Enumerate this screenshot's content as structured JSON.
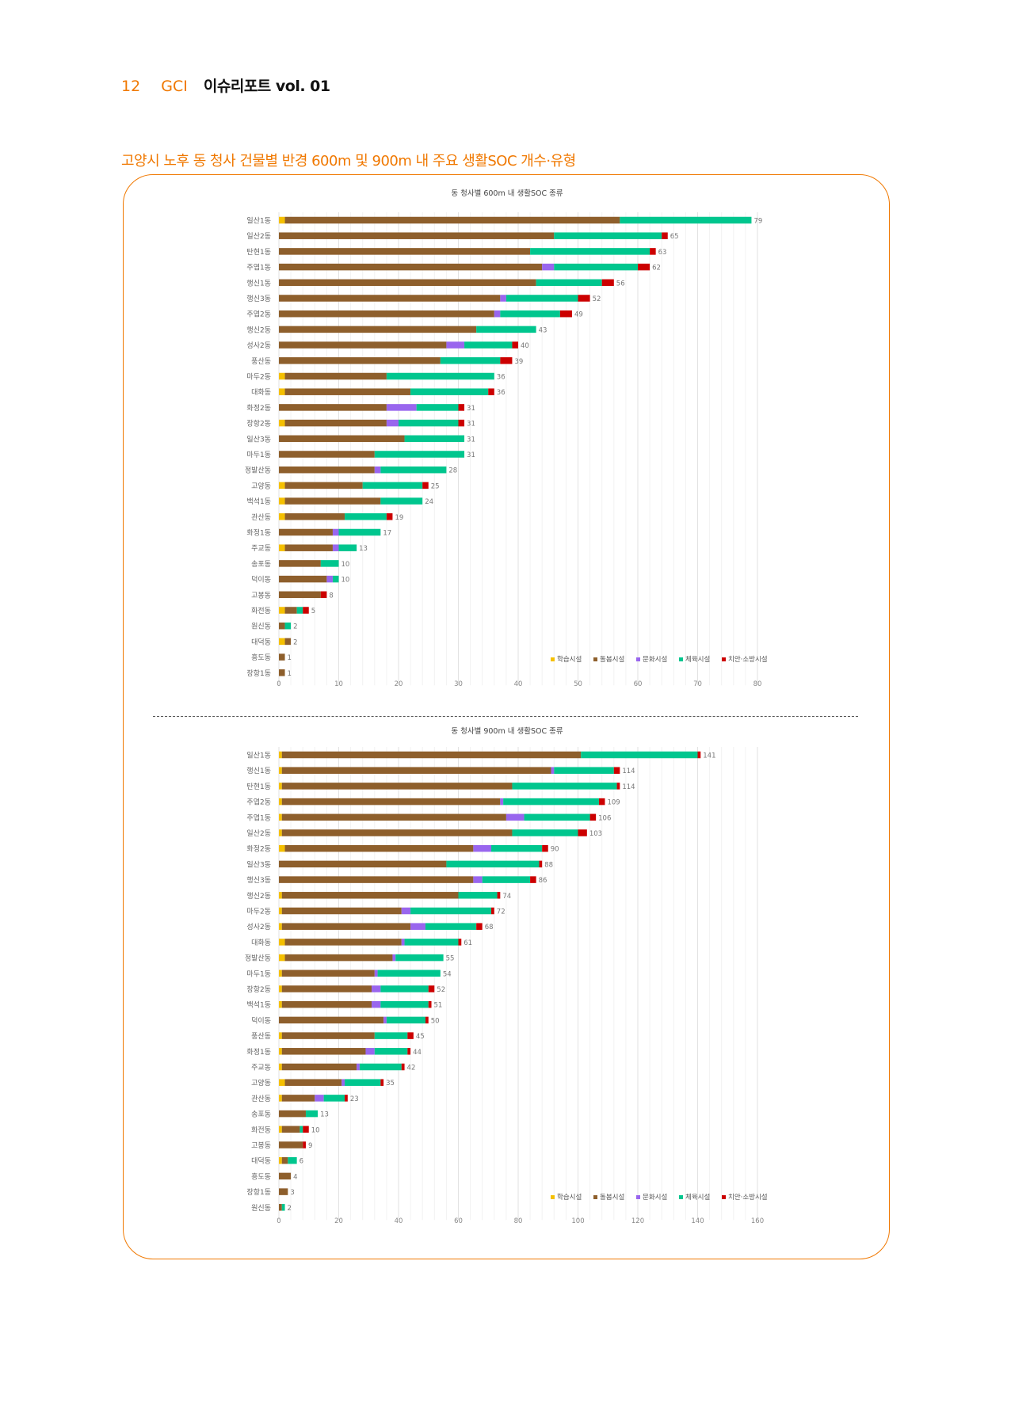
{
  "header": {
    "page_number": "12",
    "brand": "GCI",
    "report": "이슈리포트 vol. 01"
  },
  "section_title": "고양시 노후 동 청사 건물별 반경 600m 및 900m 내 주요 생활SOC 개수·유형",
  "colors": {
    "학습시설": "#f5c000",
    "돌봄시설": "#8e5f2c",
    "문화시설": "#9966ee",
    "체육시설": "#00c68e",
    "치안·소방시설": "#cc0000",
    "accent": "#f07800"
  },
  "chart_data": [
    {
      "type": "bar",
      "orientation": "horizontal-stacked",
      "title": "동 청사별 600m 내 생활SOC 종류",
      "xlim": [
        0,
        80
      ],
      "xticks": [
        0,
        10,
        20,
        30,
        40,
        50,
        60,
        70,
        80
      ],
      "legend": [
        "학습시설",
        "돌봄시설",
        "문화시설",
        "체육시설",
        "치안·소방시설"
      ],
      "legend_position": "bottom-right",
      "categories": [
        "일산1동",
        "일산2동",
        "탄현1동",
        "주엽1동",
        "행신1동",
        "행신3동",
        "주엽2동",
        "행신2동",
        "성사2동",
        "풍산동",
        "마두2동",
        "대화동",
        "화정2동",
        "장항2동",
        "일산3동",
        "마두1동",
        "정발산동",
        "고양동",
        "백석1동",
        "관산동",
        "화정1동",
        "주교동",
        "송포동",
        "덕이동",
        "고봉동",
        "화전동",
        "원신동",
        "대덕동",
        "흥도동",
        "장항1동"
      ],
      "series": [
        {
          "name": "학습시설",
          "values": [
            1,
            0,
            0,
            0,
            0,
            0,
            0,
            0,
            0,
            0,
            1,
            1,
            0,
            1,
            0,
            0,
            0,
            1,
            1,
            1,
            0,
            1,
            0,
            0,
            0,
            1,
            0,
            1,
            0,
            0
          ]
        },
        {
          "name": "돌봄시설",
          "values": [
            56,
            46,
            42,
            44,
            43,
            37,
            36,
            33,
            28,
            27,
            17,
            21,
            18,
            17,
            21,
            16,
            16,
            13,
            16,
            10,
            9,
            8,
            7,
            8,
            7,
            2,
            1,
            1,
            1,
            1
          ]
        },
        {
          "name": "문화시설",
          "values": [
            0,
            0,
            0,
            2,
            0,
            1,
            1,
            0,
            3,
            0,
            0,
            0,
            5,
            2,
            0,
            0,
            1,
            0,
            0,
            0,
            1,
            1,
            0,
            1,
            0,
            0,
            0,
            0,
            0,
            0
          ]
        },
        {
          "name": "체육시설",
          "values": [
            22,
            18,
            20,
            14,
            11,
            12,
            10,
            10,
            8,
            10,
            18,
            13,
            7,
            10,
            10,
            15,
            11,
            10,
            7,
            7,
            7,
            3,
            3,
            1,
            0,
            1,
            1,
            0,
            0,
            0
          ]
        },
        {
          "name": "치안·소방시설",
          "values": [
            0,
            1,
            1,
            2,
            2,
            2,
            2,
            0,
            1,
            2,
            0,
            1,
            1,
            1,
            0,
            0,
            0,
            1,
            0,
            1,
            0,
            0,
            0,
            0,
            1,
            1,
            0,
            0,
            0,
            0
          ]
        }
      ],
      "totals": [
        79,
        65,
        63,
        62,
        56,
        52,
        49,
        43,
        40,
        39,
        36,
        36,
        31,
        31,
        31,
        31,
        28,
        25,
        24,
        19,
        17,
        13,
        10,
        10,
        8,
        5,
        2,
        2,
        1,
        1
      ]
    },
    {
      "type": "bar",
      "orientation": "horizontal-stacked",
      "title": "동 청사별 900m 내 생활SOC 종류",
      "xlim": [
        0,
        160
      ],
      "xticks": [
        0,
        20,
        40,
        60,
        80,
        100,
        120,
        140,
        160
      ],
      "legend": [
        "학습시설",
        "돌봄시설",
        "문화시설",
        "체육시설",
        "치안·소방시설"
      ],
      "legend_position": "bottom-right",
      "categories": [
        "일산1동",
        "행신1동",
        "탄현1동",
        "주엽2동",
        "주엽1동",
        "일산2동",
        "화정2동",
        "일산3동",
        "행신3동",
        "행신2동",
        "마두2동",
        "성사2동",
        "대화동",
        "정발산동",
        "마두1동",
        "장항2동",
        "백석1동",
        "덕이동",
        "풍산동",
        "화정1동",
        "주교동",
        "고양동",
        "관산동",
        "송포동",
        "화전동",
        "고봉동",
        "대덕동",
        "흥도동",
        "장항1동",
        "원신동"
      ],
      "series": [
        {
          "name": "학습시설",
          "values": [
            1,
            1,
            1,
            1,
            1,
            1,
            2,
            0,
            0,
            1,
            1,
            1,
            2,
            2,
            1,
            1,
            1,
            0,
            1,
            1,
            1,
            2,
            1,
            0,
            1,
            0,
            1,
            0,
            0,
            0
          ]
        },
        {
          "name": "돌봄시설",
          "values": [
            100,
            90,
            77,
            73,
            75,
            77,
            63,
            56,
            65,
            59,
            40,
            43,
            39,
            36,
            31,
            30,
            30,
            35,
            31,
            28,
            25,
            19,
            11,
            9,
            6,
            8,
            2,
            4,
            3,
            1
          ]
        },
        {
          "name": "문화시설",
          "values": [
            0,
            1,
            0,
            1,
            6,
            0,
            6,
            0,
            3,
            0,
            3,
            5,
            1,
            1,
            1,
            3,
            3,
            1,
            0,
            3,
            1,
            1,
            3,
            0,
            0,
            0,
            0,
            0,
            0,
            0
          ]
        },
        {
          "name": "체육시설",
          "values": [
            39,
            20,
            35,
            32,
            22,
            22,
            17,
            31,
            16,
            13,
            27,
            17,
            18,
            16,
            21,
            16,
            16,
            13,
            11,
            11,
            14,
            12,
            7,
            4,
            1,
            0,
            3,
            0,
            0,
            1
          ]
        },
        {
          "name": "치안·소방시설",
          "values": [
            1,
            2,
            1,
            2,
            2,
            3,
            2,
            1,
            2,
            1,
            1,
            2,
            1,
            0,
            0,
            2,
            1,
            1,
            2,
            1,
            1,
            1,
            1,
            0,
            2,
            1,
            0,
            0,
            0,
            0
          ]
        }
      ],
      "totals": [
        141,
        114,
        114,
        109,
        106,
        103,
        90,
        88,
        86,
        74,
        72,
        68,
        61,
        55,
        54,
        52,
        51,
        50,
        45,
        44,
        42,
        35,
        23,
        13,
        10,
        9,
        6,
        4,
        3,
        2
      ]
    }
  ]
}
